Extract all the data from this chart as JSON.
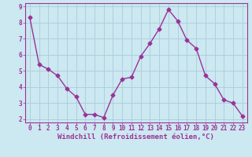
{
  "x": [
    0,
    1,
    2,
    3,
    4,
    5,
    6,
    7,
    8,
    9,
    10,
    11,
    12,
    13,
    14,
    15,
    16,
    17,
    18,
    19,
    20,
    21,
    22,
    23
  ],
  "y": [
    8.3,
    5.4,
    5.1,
    4.7,
    3.9,
    3.4,
    2.3,
    2.3,
    2.1,
    3.5,
    4.5,
    4.6,
    5.9,
    6.7,
    7.6,
    8.8,
    8.1,
    6.9,
    6.4,
    4.7,
    4.2,
    3.2,
    3.0,
    2.2
  ],
  "line_color": "#993399",
  "marker": "D",
  "marker_size": 2.5,
  "bg_color": "#cce8f0",
  "grid_color": "#aaccdd",
  "xlabel": "Windchill (Refroidissement éolien,°C)",
  "xlabel_color": "#993399",
  "tick_color": "#993399",
  "spine_color": "#993399",
  "ylim": [
    1.8,
    9.2
  ],
  "xlim": [
    -0.5,
    23.5
  ],
  "yticks": [
    2,
    3,
    4,
    5,
    6,
    7,
    8,
    9
  ],
  "xticks": [
    0,
    1,
    2,
    3,
    4,
    5,
    6,
    7,
    8,
    9,
    10,
    11,
    12,
    13,
    14,
    15,
    16,
    17,
    18,
    19,
    20,
    21,
    22,
    23
  ],
  "tick_fontsize": 5.5,
  "xlabel_fontsize": 6.5,
  "ylabel_fontsize": 6.5,
  "linewidth": 1.0
}
